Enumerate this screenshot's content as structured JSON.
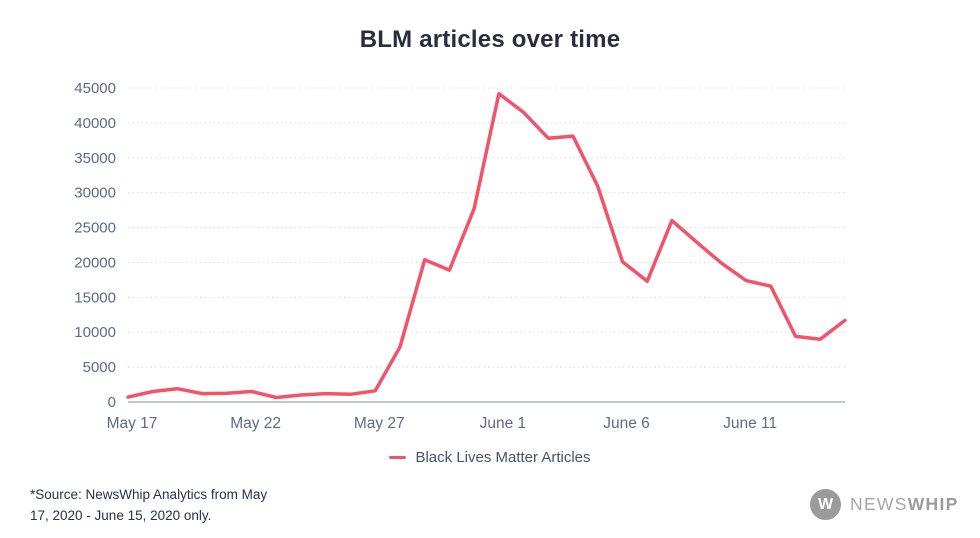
{
  "title": "BLM articles over time",
  "legend": {
    "label": "Black Lives Matter Articles"
  },
  "footer": {
    "line1": "*Source: NewsWhip Analytics from May",
    "line2": "17, 2020 - June 15, 2020 only."
  },
  "logo": {
    "monogram": "W",
    "name_regular": "NEWS",
    "name_bold": "WHIP"
  },
  "colors": {
    "line": "#f25369",
    "grid": "#d9dce4",
    "axis_line": "#9ba3b2",
    "tick_text": "#5c6a89",
    "title_text": "#272f3f"
  },
  "chart_data": {
    "type": "line",
    "title": "BLM articles over time",
    "series_name": "Black Lives Matter Articles",
    "x": [
      "May 17",
      "May 18",
      "May 19",
      "May 20",
      "May 21",
      "May 22",
      "May 23",
      "May 24",
      "May 25",
      "May 26",
      "May 27",
      "May 28",
      "May 29",
      "May 30",
      "May 31",
      "June 1",
      "June 2",
      "June 3",
      "June 4",
      "June 5",
      "June 6",
      "June 7",
      "June 8",
      "June 9",
      "June 10",
      "June 11",
      "June 12",
      "June 13",
      "June 14",
      "June 15"
    ],
    "values": [
      700,
      1500,
      1900,
      1200,
      1250,
      1500,
      650,
      1000,
      1200,
      1100,
      1600,
      7900,
      20400,
      18900,
      27700,
      44200,
      41500,
      37800,
      38100,
      30900,
      20100,
      17300,
      26000,
      22900,
      19900,
      17400,
      16600,
      9400,
      9000,
      11700
    ],
    "ylim": [
      0,
      45000
    ],
    "ytick_step": 5000,
    "xtick_indices": [
      0,
      5,
      10,
      15,
      20,
      25
    ],
    "xtick_labels": [
      "May 17",
      "May 22",
      "May 27",
      "June 1",
      "June 6",
      "June 11"
    ],
    "grid": "horizontal-dotted",
    "legend_position": "bottom-center"
  }
}
